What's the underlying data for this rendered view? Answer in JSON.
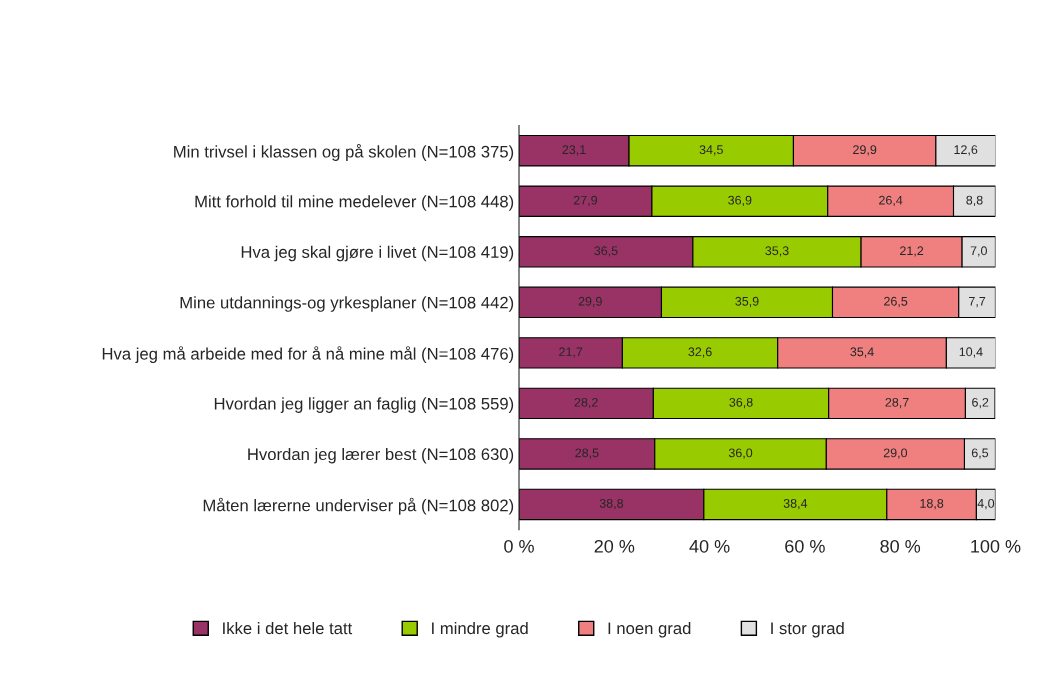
{
  "chart_data": {
    "type": "bar",
    "orientation": "horizontal",
    "stacked": true,
    "legend": "bottom",
    "grid": false,
    "categories": [
      "Min trivsel i klassen og på skolen (N=108 375)",
      "Mitt forhold til mine medelever (N=108 448)",
      "Hva jeg skal gjøre i livet (N=108 419)",
      "Mine utdannings-og yrkesplaner (N=108 442)",
      "Hva jeg må arbeide med for å nå mine mål (N=108 476)",
      "Hvordan jeg ligger an faglig (N=108 559)",
      "Hvordan jeg lærer best (N=108 630)",
      "Måten lærerne underviser på (N=108 802)"
    ],
    "series": [
      {
        "name": "Ikke i det hele tatt",
        "color": "#993366",
        "values": [
          23.1,
          27.9,
          36.5,
          29.9,
          21.7,
          28.2,
          28.5,
          38.8
        ],
        "value_labels": [
          "23,1",
          "27,9",
          "36,5",
          "29,9",
          "21,7",
          "28,2",
          "28,5",
          "38,8"
        ]
      },
      {
        "name": "I mindre grad",
        "color": "#99cc00",
        "values": [
          34.5,
          36.9,
          35.3,
          35.9,
          32.6,
          36.8,
          36.0,
          38.4
        ],
        "value_labels": [
          "34,5",
          "36,9",
          "35,3",
          "35,9",
          "32,6",
          "36,8",
          "36,0",
          "38,4"
        ]
      },
      {
        "name": "I noen grad",
        "color": "#f08080",
        "values": [
          29.9,
          26.4,
          21.2,
          26.5,
          35.4,
          28.7,
          29.0,
          18.8
        ],
        "value_labels": [
          "29,9",
          "26,4",
          "21,2",
          "26,5",
          "35,4",
          "28,7",
          "29,0",
          "18,8"
        ]
      },
      {
        "name": "I stor grad",
        "color": "#e0e0e0",
        "values": [
          12.6,
          8.8,
          7.0,
          7.7,
          10.4,
          6.2,
          6.5,
          4.0
        ],
        "value_labels": [
          "12,6",
          "8,8",
          "7,0",
          "7,7",
          "10,4",
          "6,2",
          "6,5",
          "4,0"
        ]
      }
    ],
    "xlim": [
      0,
      100
    ],
    "xticks": [
      {
        "value": 0,
        "label": "0 %"
      },
      {
        "value": 20,
        "label": "20 %"
      },
      {
        "value": 40,
        "label": "40 %"
      },
      {
        "value": 60,
        "label": "60 %"
      },
      {
        "value": 80,
        "label": "80 %"
      },
      {
        "value": 100,
        "label": "100 %"
      }
    ]
  }
}
